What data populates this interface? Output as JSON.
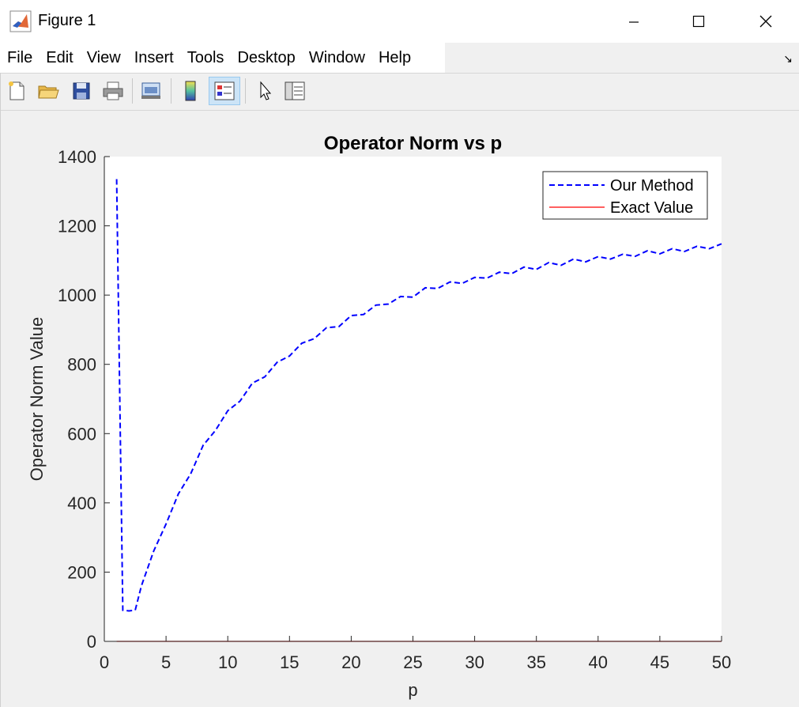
{
  "window": {
    "title": "Figure 1",
    "minimize": "–",
    "maximize": "☐",
    "close": "✕"
  },
  "menu": [
    "File",
    "Edit",
    "View",
    "Insert",
    "Tools",
    "Desktop",
    "Window",
    "Help"
  ],
  "toolbar": {
    "icons": [
      "new-figure-icon",
      "open-file-icon",
      "save-icon",
      "print-icon",
      "link-plot-icon",
      "insert-colorbar-icon",
      "insert-legend-icon",
      "edit-plot-icon",
      "property-inspector-icon"
    ],
    "active": "insert-legend-icon"
  },
  "colors": {
    "accent_series": "#0000ff",
    "exact_series": "#ff0000",
    "plot_bg": "#ffffff",
    "figure_bg": "#f0f0f0"
  },
  "chart_data": {
    "type": "line",
    "title": "Operator Norm vs p",
    "xlabel": "p",
    "ylabel": "Operator Norm Value",
    "xlim": [
      0,
      50
    ],
    "ylim": [
      0,
      1400
    ],
    "xticks": [
      0,
      5,
      10,
      15,
      20,
      25,
      30,
      35,
      40,
      45,
      50
    ],
    "yticks": [
      0,
      200,
      400,
      600,
      800,
      1000,
      1200,
      1400
    ],
    "grid": false,
    "legend_position": "top-right",
    "series": [
      {
        "name": "Our Method",
        "style": "dashed",
        "color": "#0000ff",
        "x": [
          1,
          1.5,
          2,
          2.5,
          3,
          4,
          5,
          6,
          7,
          8,
          9,
          10,
          11,
          12,
          13,
          14,
          15,
          16,
          17,
          18,
          19,
          20,
          21,
          22,
          23,
          24,
          25,
          26,
          27,
          28,
          29,
          30,
          31,
          32,
          33,
          34,
          35,
          36,
          37,
          38,
          39,
          40,
          41,
          42,
          43,
          44,
          45,
          46,
          47,
          48,
          49,
          50
        ],
        "y": [
          1335,
          90,
          88,
          90,
          160,
          255,
          345,
          420,
          490,
          560,
          615,
          660,
          700,
          740,
          770,
          800,
          830,
          855,
          880,
          900,
          915,
          935,
          950,
          965,
          980,
          990,
          1000,
          1015,
          1025,
          1032,
          1040,
          1045,
          1055,
          1060,
          1068,
          1075,
          1080,
          1088,
          1092,
          1098,
          1102,
          1105,
          1110,
          1112,
          1118,
          1122,
          1125,
          1128,
          1132,
          1135,
          1140,
          1142
        ]
      },
      {
        "name": "Exact Value",
        "style": "solid",
        "color": "#ff0000",
        "x": [
          1,
          50
        ],
        "y": [
          0,
          0
        ]
      }
    ]
  }
}
